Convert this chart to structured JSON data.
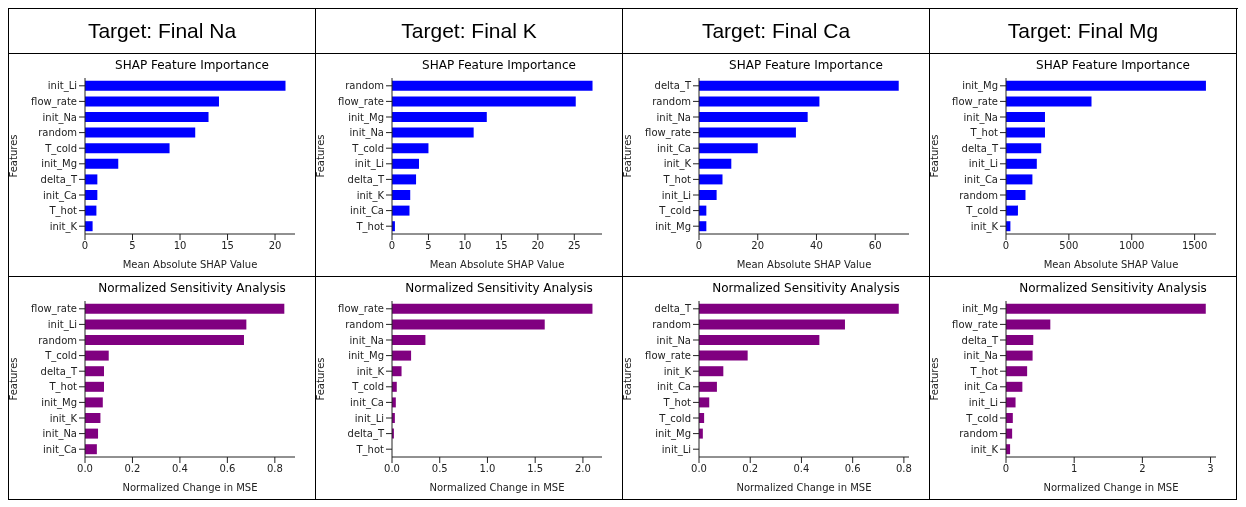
{
  "chart_data": [
    {
      "type": "other",
      "title": "Target: Final Na"
    },
    {
      "type": "other",
      "title": "Target: Final K"
    },
    {
      "type": "other",
      "title": "Target: Final Ca"
    },
    {
      "type": "other",
      "title": "Target: Final Mg"
    },
    {
      "type": "bar",
      "orientation": "horizontal",
      "title": "SHAP Feature Importance",
      "xlabel": "Mean Absolute SHAP Value",
      "ylabel": "Features",
      "categories": [
        "init_Li",
        "flow_rate",
        "init_Na",
        "random",
        "T_cold",
        "init_Mg",
        "delta_T",
        "init_Ca",
        "T_hot",
        "init_K"
      ],
      "values": [
        21.1,
        14.1,
        13.0,
        11.6,
        8.9,
        3.5,
        1.3,
        1.3,
        1.2,
        0.8
      ],
      "color": "#0000ff",
      "xlim": [
        0,
        22.1
      ],
      "xticks": [
        0,
        5,
        10,
        15,
        20
      ]
    },
    {
      "type": "bar",
      "orientation": "horizontal",
      "title": "SHAP Feature Importance",
      "xlabel": "Mean Absolute SHAP Value",
      "ylabel": "Features",
      "categories": [
        "random",
        "flow_rate",
        "init_Mg",
        "init_Na",
        "T_cold",
        "init_Li",
        "delta_T",
        "init_K",
        "init_Ca",
        "T_hot"
      ],
      "values": [
        27.5,
        25.2,
        13.0,
        11.2,
        5.0,
        3.7,
        3.3,
        2.5,
        2.4,
        0.4
      ],
      "color": "#0000ff",
      "xlim": [
        0,
        28.8
      ],
      "xticks": [
        0,
        5,
        10,
        15,
        20,
        25
      ]
    },
    {
      "type": "bar",
      "orientation": "horizontal",
      "title": "SHAP Feature Importance",
      "xlabel": "Mean Absolute SHAP Value",
      "ylabel": "Features",
      "categories": [
        "delta_T",
        "random",
        "init_Na",
        "flow_rate",
        "init_Ca",
        "init_K",
        "T_hot",
        "init_Li",
        "T_cold",
        "init_Mg"
      ],
      "values": [
        68,
        41,
        37,
        33,
        20,
        11,
        8,
        6,
        2.5,
        2.5
      ],
      "color": "#0000ff",
      "xlim": [
        0,
        71.5
      ],
      "xticks": [
        0,
        20,
        40,
        60
      ]
    },
    {
      "type": "bar",
      "orientation": "horizontal",
      "title": "SHAP Feature Importance",
      "xlabel": "Mean Absolute SHAP Value",
      "ylabel": "Features",
      "categories": [
        "init_Mg",
        "flow_rate",
        "init_Na",
        "T_hot",
        "delta_T",
        "init_Li",
        "init_Ca",
        "random",
        "T_cold",
        "init_K"
      ],
      "values": [
        1590,
        680,
        310,
        310,
        280,
        245,
        210,
        155,
        95,
        35
      ],
      "color": "#0000ff",
      "xlim": [
        0,
        1670
      ],
      "xticks": [
        0,
        500,
        1000,
        1500
      ]
    },
    {
      "type": "bar",
      "orientation": "horizontal",
      "title": "Normalized Sensitivity Analysis",
      "xlabel": "Normalized Change in MSE",
      "ylabel": "Features",
      "categories": [
        "flow_rate",
        "init_Li",
        "random",
        "T_cold",
        "delta_T",
        "T_hot",
        "init_Mg",
        "init_K",
        "init_Na",
        "init_Ca"
      ],
      "values": [
        0.84,
        0.68,
        0.67,
        0.1,
        0.08,
        0.08,
        0.075,
        0.065,
        0.055,
        0.05
      ],
      "color": "#800080",
      "xlim": [
        0,
        0.885
      ],
      "xticks": [
        {
          "value": 0,
          "label": "0.0"
        },
        0.2,
        0.4,
        0.6,
        0.8
      ]
    },
    {
      "type": "bar",
      "orientation": "horizontal",
      "title": "Normalized Sensitivity Analysis",
      "xlabel": "Normalized Change in MSE",
      "ylabel": "Features",
      "categories": [
        "flow_rate",
        "random",
        "init_Na",
        "init_Mg",
        "init_K",
        "T_cold",
        "init_Ca",
        "init_Li",
        "delta_T",
        "T_hot"
      ],
      "values": [
        2.1,
        1.6,
        0.35,
        0.2,
        0.1,
        0.05,
        0.04,
        0.03,
        0.02,
        0
      ],
      "color": "#800080",
      "xlim": [
        0,
        2.2
      ],
      "xticks": [
        {
          "value": 0,
          "label": "0.0"
        },
        0.5,
        {
          "value": 1,
          "label": "1.0"
        },
        1.5,
        {
          "value": 2,
          "label": "2.0"
        }
      ]
    },
    {
      "type": "bar",
      "orientation": "horizontal",
      "title": "Normalized Sensitivity Analysis",
      "xlabel": "Normalized Change in MSE",
      "ylabel": "Features",
      "categories": [
        "delta_T",
        "random",
        "init_Na",
        "flow_rate",
        "init_K",
        "init_Ca",
        "T_hot",
        "T_cold",
        "init_Mg",
        "init_Li"
      ],
      "values": [
        0.78,
        0.57,
        0.47,
        0.19,
        0.095,
        0.07,
        0.04,
        0.02,
        0.015,
        0
      ],
      "color": "#800080",
      "xlim": [
        0,
        0.82
      ],
      "xticks": [
        {
          "value": 0,
          "label": "0.0"
        },
        0.2,
        0.4,
        0.6,
        0.8
      ]
    },
    {
      "type": "bar",
      "orientation": "horizontal",
      "title": "Normalized Sensitivity Analysis",
      "xlabel": "Normalized Change in MSE",
      "ylabel": "Features",
      "categories": [
        "init_Mg",
        "flow_rate",
        "delta_T",
        "init_Na",
        "T_hot",
        "init_Ca",
        "init_Li",
        "T_cold",
        "random",
        "init_K"
      ],
      "values": [
        2.93,
        0.65,
        0.4,
        0.39,
        0.31,
        0.24,
        0.14,
        0.1,
        0.09,
        0.06
      ],
      "color": "#800080",
      "xlim": [
        0,
        3.08
      ],
      "xticks": [
        0,
        1,
        2,
        3
      ]
    }
  ]
}
